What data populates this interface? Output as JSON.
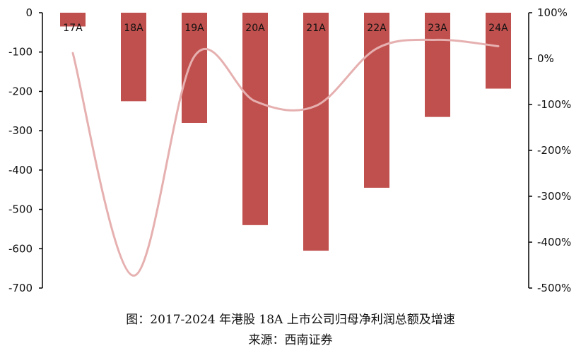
{
  "chart_data": {
    "type": "bar+line",
    "categories": [
      "17A",
      "18A",
      "19A",
      "20A",
      "21A",
      "22A",
      "23A",
      "24A"
    ],
    "series": [
      {
        "values": [
          -35,
          -225,
          -280,
          -540,
          -605,
          -445,
          -265,
          -193
        ],
        "color": "#c0504d",
        "axis": "left",
        "kind": "bar"
      },
      {
        "values": [
          12,
          -473,
          5,
          -93,
          -103,
          22,
          41,
          27
        ],
        "color": "#e6b0b0",
        "axis": "right",
        "kind": "line"
      }
    ],
    "y_left": {
      "min": -700,
      "max": 0,
      "ticks": [
        "0",
        "-100",
        "-200",
        "-300",
        "-400",
        "-500",
        "-600",
        "-700"
      ]
    },
    "y_right": {
      "min": -500,
      "max": 100,
      "ticks": [
        "100%",
        "0%",
        "-100%",
        "-200%",
        "-300%",
        "-400%",
        "-500%"
      ]
    },
    "grid": false,
    "legend": "none"
  },
  "caption": {
    "title": "图：2017-2024 年港股 18A 上市公司归母净利润总额及增速",
    "source": "来源：西南证券"
  }
}
